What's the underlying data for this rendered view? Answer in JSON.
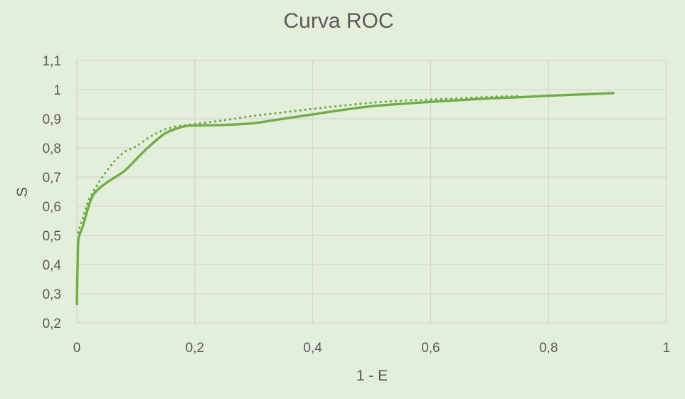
{
  "chart_data": {
    "type": "line",
    "title": "Curva ROC",
    "xlabel": "1 - E",
    "ylabel": "S",
    "xlim": [
      0,
      1
    ],
    "ylim": [
      0.2,
      1.1
    ],
    "x_ticks": [
      "0",
      "0,2",
      "0,4",
      "0,6",
      "0,8",
      "1"
    ],
    "y_ticks": [
      "0,2",
      "0,3",
      "0,4",
      "0,5",
      "0,6",
      "0,7",
      "0,8",
      "0,9",
      "1",
      "1,1"
    ],
    "grid": true,
    "legend": "none",
    "series": [
      {
        "style": "solid",
        "color": "#70ad47",
        "x": [
          0,
          0.0015,
          0.003,
          0.01,
          0.02,
          0.03,
          0.05,
          0.08,
          0.1,
          0.12,
          0.15,
          0.18,
          0.2,
          0.25,
          0.3,
          0.35,
          0.4,
          0.45,
          0.5,
          0.55,
          0.6,
          0.65,
          0.7,
          0.75,
          0.8,
          0.85,
          0.91
        ],
        "y": [
          0.265,
          0.42,
          0.49,
          0.53,
          0.6,
          0.645,
          0.68,
          0.72,
          0.76,
          0.8,
          0.85,
          0.873,
          0.877,
          0.879,
          0.885,
          0.9,
          0.915,
          0.93,
          0.943,
          0.951,
          0.958,
          0.964,
          0.97,
          0.974,
          0.979,
          0.983,
          0.988
        ]
      },
      {
        "style": "dotted",
        "color": "#70ad47",
        "x": [
          0.002,
          0.01,
          0.02,
          0.04,
          0.06,
          0.08,
          0.1,
          0.13,
          0.16,
          0.2,
          0.25,
          0.3,
          0.35,
          0.4,
          0.45,
          0.5,
          0.55,
          0.6,
          0.65,
          0.7,
          0.75
        ],
        "y": [
          0.51,
          0.56,
          0.62,
          0.69,
          0.745,
          0.785,
          0.805,
          0.845,
          0.87,
          0.882,
          0.895,
          0.91,
          0.922,
          0.934,
          0.945,
          0.955,
          0.962,
          0.966,
          0.97,
          0.975,
          0.978
        ]
      }
    ]
  }
}
